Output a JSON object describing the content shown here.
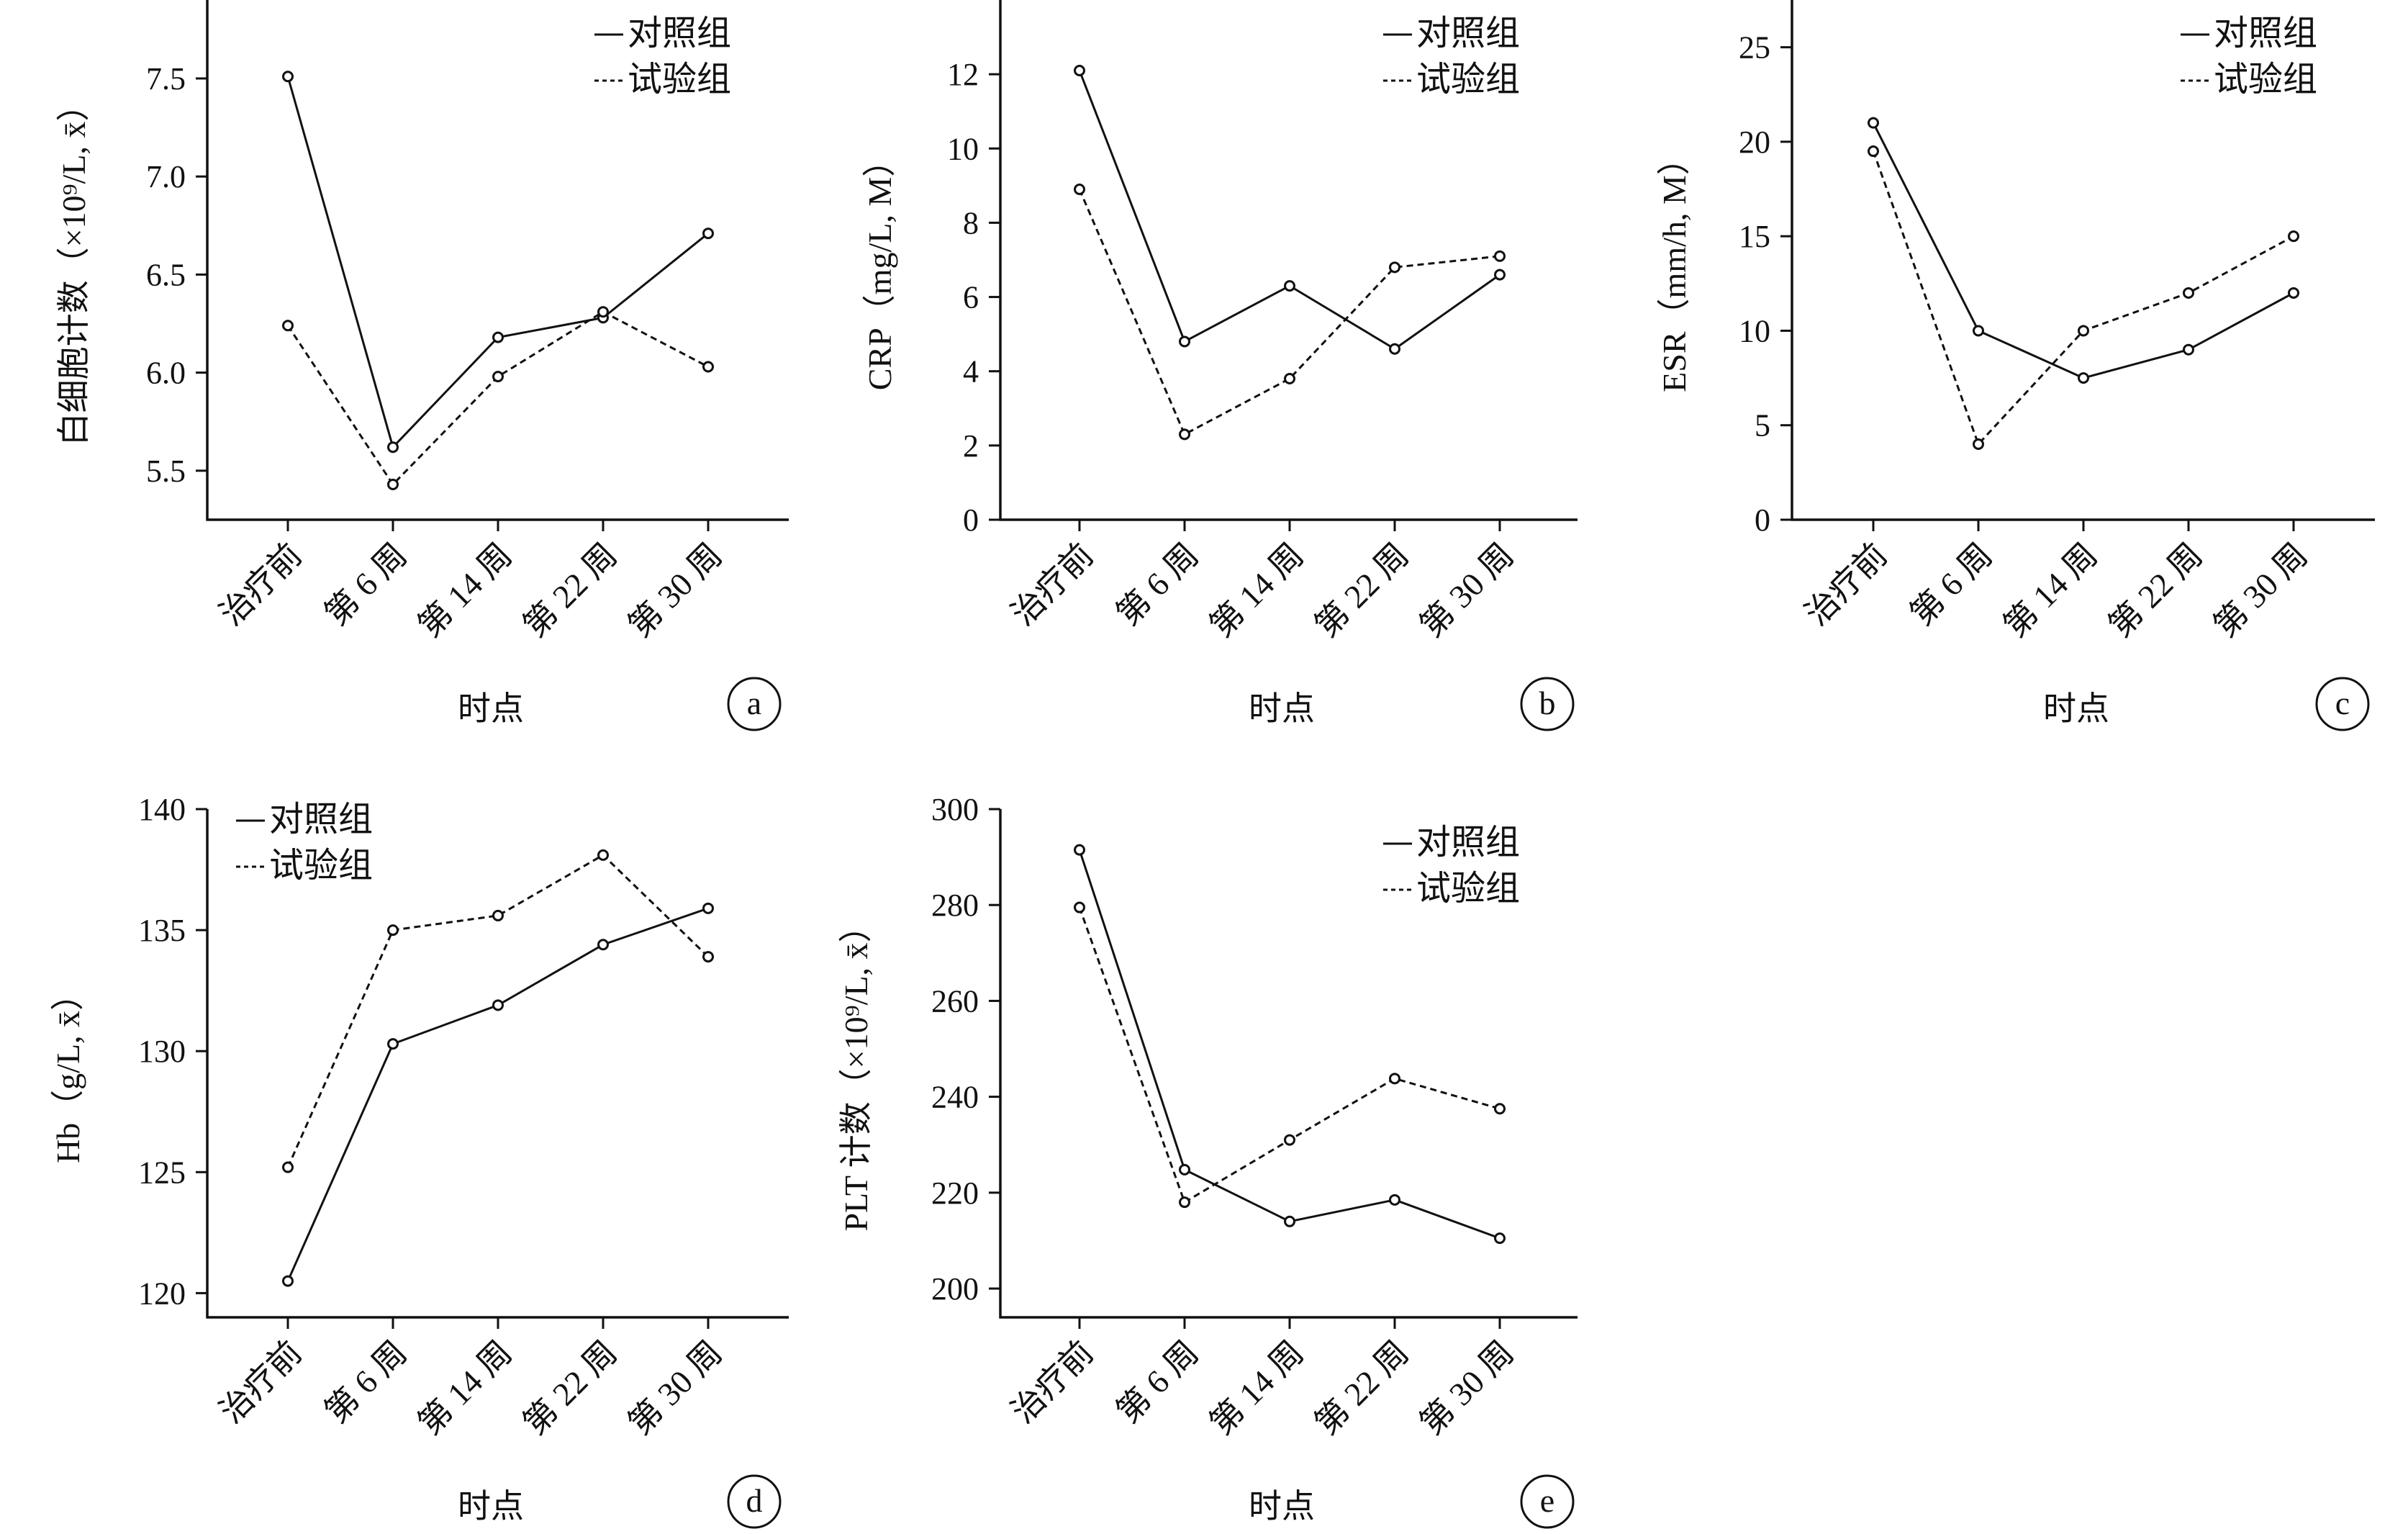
{
  "colors": {
    "line": "#111111",
    "background": "#ffffff"
  },
  "chart_data": [
    {
      "id": "a",
      "type": "line",
      "panel_label": "a",
      "xlabel": "时点",
      "ylabel": "白细胞计数（×10⁹/L, x̄）",
      "categories": [
        "治疗前",
        "第 6 周",
        "第 14 周",
        "第 22 周",
        "第 30 周"
      ],
      "ylim": [
        5.25,
        7.9
      ],
      "yticks": [
        5.5,
        6.0,
        6.5,
        7.0,
        7.5
      ],
      "ytick_labels": [
        "5.5",
        "6.0",
        "6.5",
        "7.0",
        "7.5"
      ],
      "legend_position": "top-right",
      "series": [
        {
          "name": "对照组",
          "style": "solid",
          "values": [
            7.51,
            5.62,
            6.18,
            6.28,
            6.71
          ]
        },
        {
          "name": "试验组",
          "style": "dashed",
          "values": [
            6.24,
            5.43,
            5.98,
            6.31,
            6.03
          ]
        }
      ]
    },
    {
      "id": "b",
      "type": "line",
      "panel_label": "b",
      "xlabel": "时点",
      "ylabel": "CRP（mg/L, M）",
      "categories": [
        "治疗前",
        "第 6 周",
        "第 14 周",
        "第 22 周",
        "第 30 周"
      ],
      "ylim": [
        0,
        14
      ],
      "yticks": [
        0,
        2,
        4,
        6,
        8,
        10,
        12
      ],
      "ytick_labels": [
        "0",
        "2",
        "4",
        "6",
        "8",
        "10",
        "12"
      ],
      "legend_position": "top-right",
      "series": [
        {
          "name": "对照组",
          "style": "solid",
          "values": [
            12.1,
            4.8,
            6.3,
            4.6,
            6.6
          ]
        },
        {
          "name": "试验组",
          "style": "dashed",
          "values": [
            8.9,
            2.3,
            3.8,
            6.8,
            7.1
          ]
        }
      ]
    },
    {
      "id": "c",
      "type": "line",
      "panel_label": "c",
      "xlabel": "时点",
      "ylabel": "ESR（mm/h, M）",
      "categories": [
        "治疗前",
        "第 6 周",
        "第 14 周",
        "第 22 周",
        "第 30 周"
      ],
      "ylim": [
        0,
        27.5
      ],
      "yticks": [
        0,
        5,
        10,
        15,
        20,
        25
      ],
      "ytick_labels": [
        "0",
        "5",
        "10",
        "15",
        "20",
        "25"
      ],
      "legend_position": "top-right",
      "series": [
        {
          "name": "对照组",
          "style": "solid",
          "values": [
            21,
            10,
            7.5,
            9,
            12
          ]
        },
        {
          "name": "试验组",
          "style": "dashed",
          "values": [
            19.5,
            4,
            10,
            12,
            15
          ]
        }
      ]
    },
    {
      "id": "d",
      "type": "line",
      "panel_label": "d",
      "xlabel": "时点",
      "ylabel": "Hb（g/L, x̄）",
      "categories": [
        "治疗前",
        "第 6 周",
        "第 14 周",
        "第 22 周",
        "第 30 周"
      ],
      "ylim": [
        119,
        140
      ],
      "yticks": [
        120,
        125,
        130,
        135,
        140
      ],
      "ytick_labels": [
        "120",
        "125",
        "130",
        "135",
        "140"
      ],
      "legend_position": "top-left",
      "series": [
        {
          "name": "对照组",
          "style": "solid",
          "values": [
            120.5,
            130.3,
            131.9,
            134.4,
            135.9
          ]
        },
        {
          "name": "试验组",
          "style": "dashed",
          "values": [
            125.2,
            135.0,
            135.6,
            138.1,
            133.9
          ]
        }
      ]
    },
    {
      "id": "e",
      "type": "line",
      "panel_label": "e",
      "xlabel": "时点",
      "ylabel": "PLT 计数（×10⁹/L, x̄）",
      "categories": [
        "治疗前",
        "第 6 周",
        "第 14 周",
        "第 22 周",
        "第 30 周"
      ],
      "ylim": [
        194,
        300
      ],
      "yticks": [
        200,
        220,
        240,
        260,
        280,
        300
      ],
      "ytick_labels": [
        "200",
        "220",
        "240",
        "260",
        "280",
        "300"
      ],
      "legend_position": "top-right",
      "series": [
        {
          "name": "对照组",
          "style": "solid",
          "values": [
            291.5,
            224.8,
            214.0,
            218.5,
            210.5
          ]
        },
        {
          "name": "试验组",
          "style": "dashed",
          "values": [
            279.5,
            218.0,
            231.0,
            243.8,
            237.5
          ]
        }
      ]
    }
  ]
}
